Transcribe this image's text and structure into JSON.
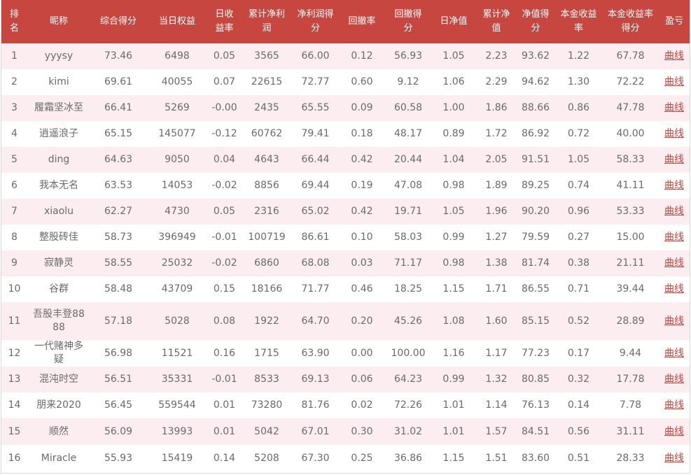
{
  "columns": [
    "排名",
    "昵称",
    "综合得分",
    "当日权益",
    "日收益率",
    "累计净利润",
    "净利润得分",
    "回撤率",
    "回撤得分",
    "日净值",
    "累计净值",
    "净值得分",
    "本金收益率",
    "本金收益率得分",
    "盈亏"
  ],
  "rows": [
    [
      "1",
      "yyysy",
      "73.46",
      "6498",
      "0.05",
      "3565",
      "66.00",
      "0.12",
      "56.93",
      "1.05",
      "2.23",
      "93.62",
      "1.22",
      "67.78",
      "曲线"
    ],
    [
      "2",
      "kimi",
      "69.61",
      "40055",
      "0.07",
      "22615",
      "72.77",
      "0.60",
      "9.12",
      "1.06",
      "2.29",
      "94.62",
      "1.30",
      "72.22",
      "曲线"
    ],
    [
      "3",
      "履霜坚冰至",
      "66.41",
      "5269",
      "-0.00",
      "2435",
      "65.55",
      "0.09",
      "60.58",
      "1.00",
      "1.86",
      "88.66",
      "0.86",
      "47.78",
      "曲线"
    ],
    [
      "4",
      "逍遥浪子",
      "65.15",
      "145077",
      "-0.12",
      "60762",
      "79.41",
      "0.18",
      "48.17",
      "0.89",
      "1.72",
      "86.92",
      "0.72",
      "40.00",
      "曲线"
    ],
    [
      "5",
      "ding",
      "64.63",
      "9050",
      "0.04",
      "4643",
      "66.44",
      "0.42",
      "20.44",
      "1.04",
      "2.05",
      "91.51",
      "1.05",
      "58.33",
      "曲线"
    ],
    [
      "6",
      "我本无名",
      "63.53",
      "14053",
      "-0.02",
      "8856",
      "69.44",
      "0.19",
      "47.08",
      "0.98",
      "1.89",
      "89.25",
      "0.74",
      "41.11",
      "曲线"
    ],
    [
      "7",
      "xiaolu",
      "62.27",
      "4730",
      "0.05",
      "2316",
      "65.02",
      "0.42",
      "19.71",
      "1.05",
      "1.96",
      "90.20",
      "0.96",
      "53.33",
      "曲线"
    ],
    [
      "8",
      "整股砖佳",
      "58.73",
      "396949",
      "-0.01",
      "100719",
      "86.61",
      "0.10",
      "58.03",
      "0.99",
      "1.27",
      "79.59",
      "0.27",
      "15.00",
      "曲线"
    ],
    [
      "9",
      "寂静灵",
      "58.55",
      "25032",
      "-0.02",
      "6860",
      "68.08",
      "0.03",
      "71.17",
      "0.98",
      "1.38",
      "81.74",
      "0.38",
      "21.11",
      "曲线"
    ],
    [
      "10",
      "谷群",
      "58.48",
      "43709",
      "0.15",
      "18166",
      "71.77",
      "0.46",
      "18.25",
      "1.15",
      "1.71",
      "86.55",
      "0.71",
      "39.44",
      "曲线"
    ],
    [
      "11",
      "吾股丰登8888",
      "57.18",
      "5028",
      "0.08",
      "1922",
      "64.70",
      "0.20",
      "45.26",
      "1.08",
      "1.60",
      "85.15",
      "0.52",
      "28.89",
      "曲线"
    ],
    [
      "12",
      "一代赌神多疑",
      "56.98",
      "11521",
      "0.16",
      "1715",
      "63.90",
      "0.00",
      "100.00",
      "1.16",
      "1.17",
      "77.23",
      "0.17",
      "9.44",
      "曲线"
    ],
    [
      "13",
      "混沌时空",
      "56.51",
      "35331",
      "-0.01",
      "8533",
      "69.13",
      "0.06",
      "64.23",
      "0.99",
      "1.32",
      "80.85",
      "0.32",
      "17.78",
      "曲线"
    ],
    [
      "14",
      "朋来2020",
      "56.45",
      "559544",
      "0.01",
      "73280",
      "81.76",
      "0.02",
      "72.26",
      "1.01",
      "1.14",
      "76.13",
      "0.14",
      "7.78",
      "曲线"
    ],
    [
      "15",
      "顺然",
      "56.09",
      "13993",
      "0.01",
      "5042",
      "67.01",
      "0.30",
      "31.02",
      "1.01",
      "1.57",
      "84.51",
      "0.56",
      "31.11",
      "曲线"
    ],
    [
      "16",
      "Miracle",
      "55.93",
      "15419",
      "0.14",
      "5208",
      "67.30",
      "0.25",
      "36.86",
      "1.15",
      "1.51",
      "83.60",
      "0.51",
      "28.33",
      "曲线"
    ]
  ],
  "colors": {
    "header_bg": "#c7463f",
    "header_text": "#ffffff",
    "row_odd_bg": "#fcedf0",
    "row_even_bg": "#ffffff",
    "cell_text": "#6a6a6a",
    "link_text": "#c7463f"
  }
}
